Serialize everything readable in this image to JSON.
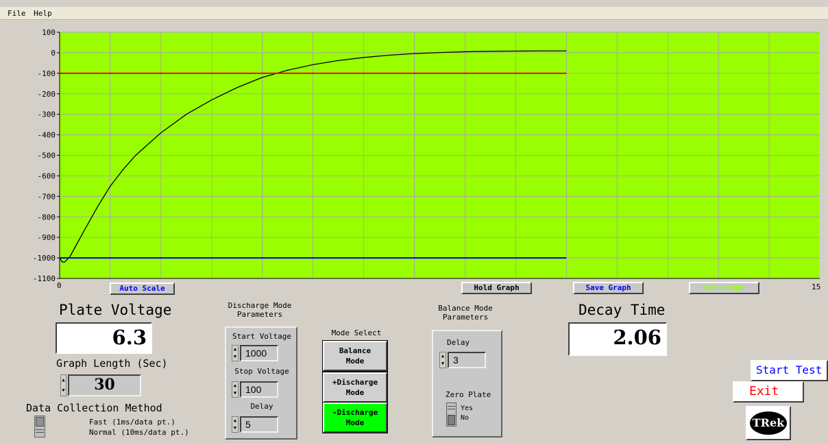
{
  "menu": [
    "File",
    "Help"
  ],
  "chart_data": {
    "type": "line",
    "xlim": [
      0,
      15
    ],
    "ylim": [
      -1100,
      100
    ],
    "x_ticks": [
      "0",
      "15"
    ],
    "y_ticks": [
      "100",
      "0",
      "-100",
      "-200",
      "-300",
      "-400",
      "-500",
      "-600",
      "-700",
      "-800",
      "-900",
      "-1000",
      "-1100"
    ],
    "grid": true,
    "background": "#99ff00",
    "series": [
      {
        "color": "#000000",
        "x": [
          0.0,
          0.05,
          0.1,
          0.2,
          0.3,
          0.5,
          0.75,
          1.0,
          1.25,
          1.5,
          2.0,
          2.5,
          3.0,
          3.5,
          4.0,
          4.5,
          5.0,
          5.5,
          6.0,
          6.5,
          7.0,
          7.5,
          8.0,
          8.5,
          9.0,
          9.5,
          10.0
        ],
        "y": [
          -1000,
          -1020,
          -1020,
          -995,
          -950,
          -860,
          -750,
          -650,
          -570,
          -500,
          -390,
          -300,
          -230,
          -170,
          -120,
          -85,
          -58,
          -38,
          -23,
          -12,
          -4,
          1,
          5,
          7,
          8,
          9,
          9
        ]
      },
      {
        "color": "#ff0000",
        "x": [
          0,
          10
        ],
        "y": [
          -100,
          -100
        ]
      },
      {
        "color": "#0000cc",
        "x": [
          0,
          10
        ],
        "y": [
          -1000,
          -1000
        ]
      }
    ]
  },
  "graph_buttons": {
    "auto_scale": "Auto Scale",
    "hold_graph": "Hold Graph",
    "save_graph": "Save Graph",
    "get_graph": "Get Graph"
  },
  "plate": {
    "title": "Plate Voltage",
    "value": "6.3",
    "graph_length_label": "Graph Length (Sec)",
    "graph_length_value": "30"
  },
  "data_collection": {
    "title": "Data Collection Method",
    "fast": "Fast (1ms/data pt.)",
    "normal": "Normal (10ms/data pt.)"
  },
  "discharge": {
    "title_line1": "Discharge Mode",
    "title_line2": "Parameters",
    "start_label": "Start Voltage",
    "start_value": "1000",
    "stop_label": "Stop Voltage",
    "stop_value": "100",
    "delay_label": "Delay",
    "delay_value": "5"
  },
  "mode_select": {
    "title": "Mode Select",
    "balance_l1": "Balance",
    "balance_l2": "Mode",
    "plus_l1": "+Discharge",
    "plus_l2": "Mode",
    "minus_l1": "-Discharge",
    "minus_l2": "Mode",
    "active_color": "#00ff00"
  },
  "balance": {
    "title_line1": "Balance Mode",
    "title_line2": "Parameters",
    "delay_label": "Delay",
    "delay_value": "3",
    "zero_plate_label": "Zero Plate",
    "yes": "Yes",
    "no": "No"
  },
  "decay": {
    "title": "Decay Time",
    "value": "2.06"
  },
  "actions": {
    "start_test": "Start Test",
    "exit": "Exit",
    "logo_text": "TRek"
  }
}
